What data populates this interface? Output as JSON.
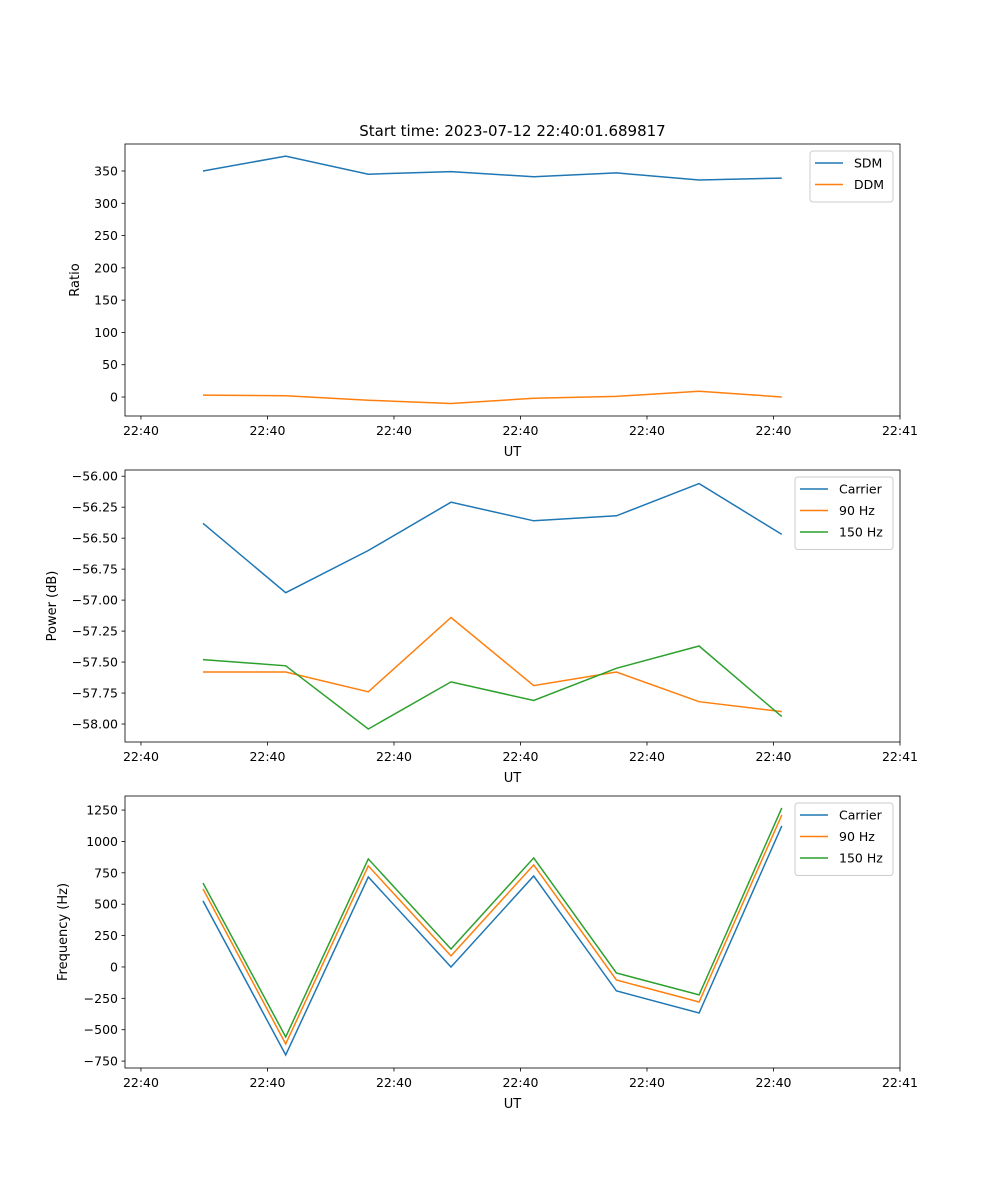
{
  "chart_data": [
    {
      "type": "line",
      "title": "Start time: 2023-07-12 22:40:01.689817",
      "xlabel": "UT",
      "ylabel": "Ratio",
      "x": [
        0,
        1,
        2,
        3,
        4,
        5,
        6,
        7
      ],
      "xlim": [
        -0.943,
        8.43
      ],
      "xticks": [
        -0.75,
        0.78,
        2.31,
        3.84,
        5.37,
        6.9,
        8.43
      ],
      "xtick_labels": [
        "22:40",
        "22:40",
        "22:40",
        "22:40",
        "22:40",
        "22:40",
        "22:41"
      ],
      "ylim": [
        -29.4,
        391.8
      ],
      "yticks": [
        0,
        50,
        100,
        150,
        200,
        250,
        300,
        350
      ],
      "ytick_labels": [
        "0",
        "50",
        "100",
        "150",
        "200",
        "250",
        "300",
        "350"
      ],
      "legend": "top-right",
      "series": [
        {
          "name": "SDM",
          "color": "#1f77b4",
          "values": [
            350,
            373,
            345,
            349,
            341,
            347,
            336,
            339
          ]
        },
        {
          "name": "DDM",
          "color": "#ff7f0e",
          "values": [
            3,
            2,
            -5,
            -10,
            -2,
            1,
            9,
            0
          ]
        }
      ]
    },
    {
      "type": "line",
      "title": "",
      "xlabel": "UT",
      "ylabel": "Power (dB)",
      "x": [
        0,
        1,
        2,
        3,
        4,
        5,
        6,
        7
      ],
      "xlim": [
        -0.943,
        8.43
      ],
      "xticks": [
        -0.75,
        0.78,
        2.31,
        3.84,
        5.37,
        6.9,
        8.43
      ],
      "xtick_labels": [
        "22:40",
        "22:40",
        "22:40",
        "22:40",
        "22:40",
        "22:40",
        "22:41"
      ],
      "ylim": [
        -58.145,
        -55.95
      ],
      "yticks": [
        -58,
        -57.75,
        -57.5,
        -57.25,
        -57,
        -56.75,
        -56.5,
        -56.25,
        -56
      ],
      "ytick_labels": [
        "−58.00",
        "−57.75",
        "−57.50",
        "−57.25",
        "−57.00",
        "−56.75",
        "−56.50",
        "−56.25",
        "−56.00"
      ],
      "legend": "top-right",
      "series": [
        {
          "name": "Carrier",
          "color": "#1f77b4",
          "values": [
            -56.38,
            -56.94,
            -56.6,
            -56.21,
            -56.36,
            -56.32,
            -56.06,
            -56.47
          ]
        },
        {
          "name": "90 Hz",
          "color": "#ff7f0e",
          "values": [
            -57.58,
            -57.58,
            -57.74,
            -57.14,
            -57.69,
            -57.58,
            -57.82,
            -57.9
          ]
        },
        {
          "name": "150 Hz",
          "color": "#2ca02c",
          "values": [
            -57.48,
            -57.53,
            -58.04,
            -57.66,
            -57.81,
            -57.55,
            -57.37,
            -57.94
          ]
        }
      ]
    },
    {
      "type": "line",
      "title": "",
      "xlabel": "UT",
      "ylabel": "Frequency (Hz)",
      "x": [
        0,
        1,
        2,
        3,
        4,
        5,
        6,
        7
      ],
      "xlim": [
        -0.943,
        8.43
      ],
      "xticks": [
        -0.75,
        0.78,
        2.31,
        3.84,
        5.37,
        6.9,
        8.43
      ],
      "xtick_labels": [
        "22:40",
        "22:40",
        "22:40",
        "22:40",
        "22:40",
        "22:40",
        "22:41"
      ],
      "ylim": [
        -805,
        1362
      ],
      "yticks": [
        -750,
        -500,
        -250,
        0,
        250,
        500,
        750,
        1000,
        1250
      ],
      "ytick_labels": [
        "−750",
        "−500",
        "−250",
        "0",
        "250",
        "500",
        "750",
        "1000",
        "1250"
      ],
      "legend": "top-right",
      "series": [
        {
          "name": "Carrier",
          "color": "#1f77b4",
          "values": [
            526,
            -701,
            717,
            0,
            725,
            -191,
            -367,
            1124
          ]
        },
        {
          "name": "90 Hz",
          "color": "#ff7f0e",
          "values": [
            622,
            -614,
            805,
            88,
            813,
            -104,
            -279,
            1211
          ]
        },
        {
          "name": "150 Hz",
          "color": "#2ca02c",
          "values": [
            669,
            -558,
            861,
            143,
            869,
            -48,
            -223,
            1267
          ]
        }
      ]
    }
  ]
}
